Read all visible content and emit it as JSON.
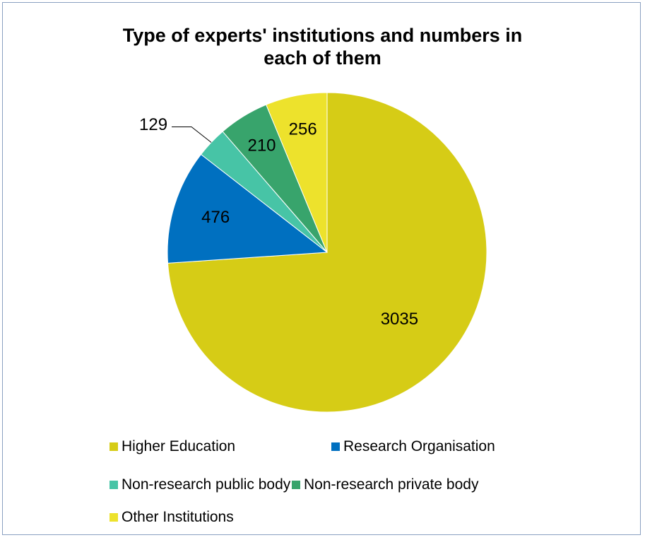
{
  "chart_data": {
    "type": "pie",
    "title": "Type of experts' institutions and numbers in each of them",
    "title_lines": [
      "Type of experts' institutions and numbers in",
      "each of them"
    ],
    "categories": [
      "Higher Education",
      "Research Organisation",
      "Non-research public body",
      "Non-research private body",
      "Other Institutions"
    ],
    "values": [
      3035,
      476,
      129,
      210,
      256
    ],
    "colors": [
      "#d6cc16",
      "#0070c0",
      "#47c4a6",
      "#38a46c",
      "#ede22c"
    ],
    "data_labels": [
      "3035",
      "476",
      "129",
      "210",
      "256"
    ],
    "legend_position": "bottom",
    "start_angle_deg": 0,
    "direction": "clockwise"
  }
}
